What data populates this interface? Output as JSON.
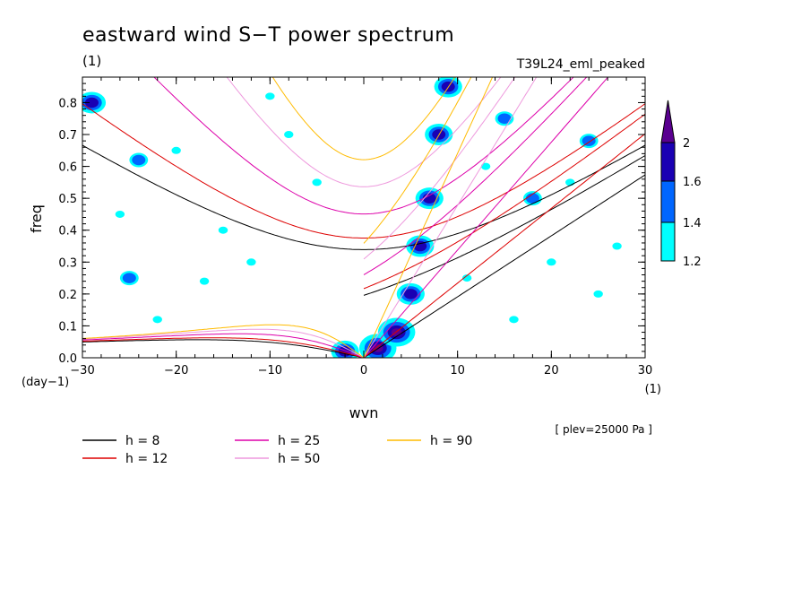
{
  "chart_data": {
    "type": "heatmap",
    "title": "eastward wind S−T power spectrum",
    "units_label": "(1)",
    "run_name": "T39L24_eml_peaked",
    "xlabel": "wvn",
    "ylabel": "freq",
    "x_unit": "(1)",
    "y_unit": "(day−1)",
    "level_note": "[ plev=25000 Pa ]",
    "xlim": [
      -30,
      30
    ],
    "ylim": [
      0,
      0.88
    ],
    "x_ticks": [
      "−30",
      "−20",
      "−10",
      "0",
      "10",
      "20",
      "30"
    ],
    "y_ticks": [
      "0.0",
      "0.1",
      "0.2",
      "0.3",
      "0.4",
      "0.5",
      "0.6",
      "0.7",
      "0.8"
    ],
    "colorbar": {
      "levels": [
        "1.2",
        "1.4",
        "1.6",
        "2"
      ],
      "colors": [
        "#00ffff",
        "#0066ff",
        "#1a00b3",
        "#5a0090"
      ]
    },
    "dispersion_curves": [
      {
        "name": "h = 8",
        "h": 8,
        "color": "#000000"
      },
      {
        "name": "h = 12",
        "h": 12,
        "color": "#dd0000"
      },
      {
        "name": "h = 25",
        "h": 25,
        "color": "#dd00aa"
      },
      {
        "name": "h = 50",
        "h": 50,
        "color": "#ee99dd"
      },
      {
        "name": "h = 90",
        "h": 90,
        "color": "#ffbb00"
      }
    ],
    "high_power_regions": [
      {
        "x": 1.5,
        "y": 0.03,
        "level": 2
      },
      {
        "x": 3.5,
        "y": 0.08,
        "level": 2
      },
      {
        "x": 5,
        "y": 0.2,
        "level": 1.6
      },
      {
        "x": 6,
        "y": 0.35,
        "level": 1.6
      },
      {
        "x": 7,
        "y": 0.5,
        "level": 1.6
      },
      {
        "x": 8,
        "y": 0.7,
        "level": 1.6
      },
      {
        "x": 9,
        "y": 0.85,
        "level": 1.6
      },
      {
        "x": -2,
        "y": 0.02,
        "level": 1.6
      },
      {
        "x": -29,
        "y": 0.8,
        "level": 1.6
      },
      {
        "x": -24,
        "y": 0.62,
        "level": 1.4
      },
      {
        "x": -25,
        "y": 0.25,
        "level": 1.4
      },
      {
        "x": 15,
        "y": 0.75,
        "level": 1.4
      },
      {
        "x": 18,
        "y": 0.5,
        "level": 1.4
      },
      {
        "x": 24,
        "y": 0.68,
        "level": 1.4
      },
      {
        "x": -17,
        "y": 0.24,
        "level": 1.2
      },
      {
        "x": -8,
        "y": 0.7,
        "level": 1.2
      },
      {
        "x": 20,
        "y": 0.3,
        "level": 1.2
      },
      {
        "x": -15,
        "y": 0.4,
        "level": 1.2
      },
      {
        "x": 22,
        "y": 0.55,
        "level": 1.2
      },
      {
        "x": -20,
        "y": 0.65,
        "level": 1.2
      },
      {
        "x": 13,
        "y": 0.6,
        "level": 1.2
      },
      {
        "x": -12,
        "y": 0.3,
        "level": 1.2
      },
      {
        "x": 25,
        "y": 0.2,
        "level": 1.2
      },
      {
        "x": -26,
        "y": 0.45,
        "level": 1.2
      },
      {
        "x": -5,
        "y": 0.55,
        "level": 1.2
      },
      {
        "x": 16,
        "y": 0.12,
        "level": 1.2
      },
      {
        "x": -22,
        "y": 0.12,
        "level": 1.2
      },
      {
        "x": 27,
        "y": 0.35,
        "level": 1.2
      },
      {
        "x": -10,
        "y": 0.82,
        "level": 1.2
      },
      {
        "x": 11,
        "y": 0.25,
        "level": 1.2
      }
    ]
  }
}
